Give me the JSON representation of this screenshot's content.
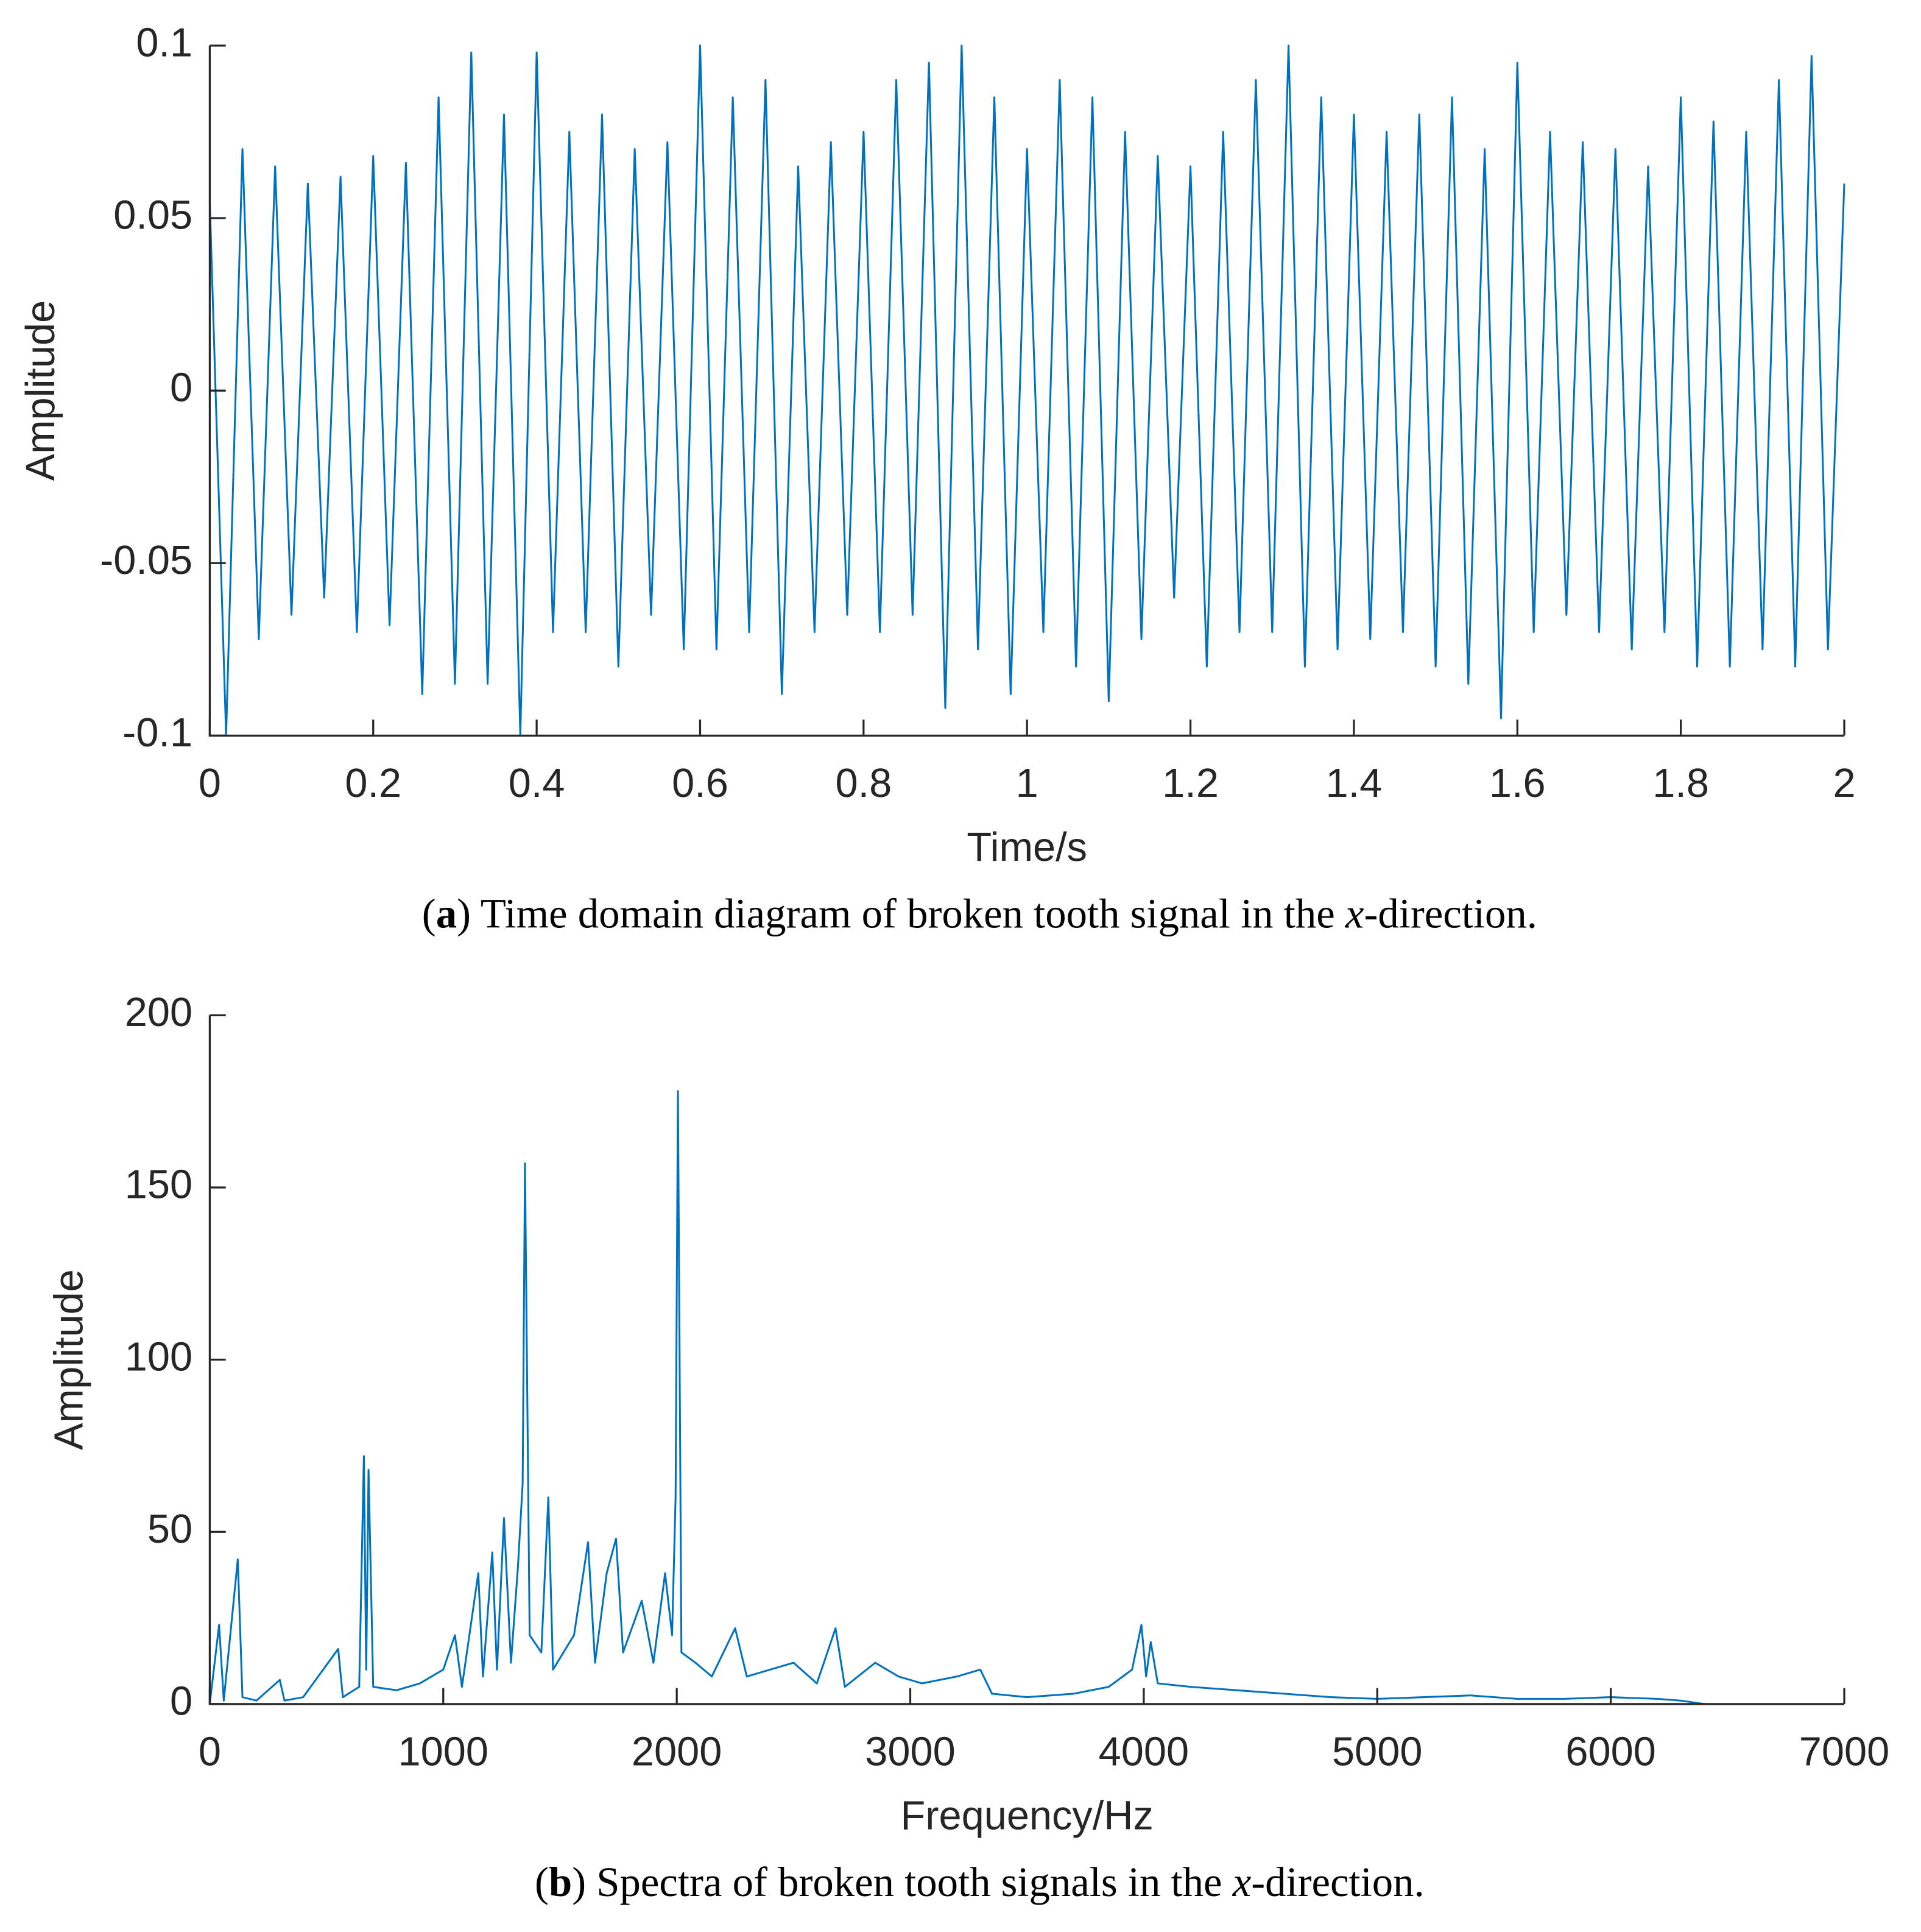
{
  "chart_data": [
    {
      "type": "line",
      "color": "#0072bd",
      "xlabel": "Time/s",
      "ylabel": "Amplitude",
      "caption_parts": [
        "(",
        "a",
        ") Time domain diagram of broken tooth signal in the ",
        "x",
        "-direction."
      ],
      "xlim": [
        0,
        2
      ],
      "ylim": [
        -0.1,
        0.1
      ],
      "xticks": [
        0,
        0.2,
        0.4,
        0.6,
        0.8,
        1,
        1.2,
        1.4,
        1.6,
        1.8,
        2
      ],
      "yticks": [
        -0.1,
        -0.05,
        0,
        0.05,
        0.1
      ],
      "x": [
        0,
        0.02,
        0.04,
        0.06,
        0.08,
        0.1,
        0.12,
        0.14,
        0.16,
        0.18,
        0.2,
        0.22,
        0.24,
        0.26,
        0.28,
        0.3,
        0.32,
        0.34,
        0.36,
        0.38,
        0.4,
        0.42,
        0.44,
        0.46,
        0.48,
        0.5,
        0.52,
        0.54,
        0.56,
        0.58,
        0.6,
        0.62,
        0.64,
        0.66,
        0.68,
        0.7,
        0.72,
        0.74,
        0.76,
        0.78,
        0.8,
        0.82,
        0.84,
        0.86,
        0.88,
        0.9,
        0.92,
        0.94,
        0.96,
        0.98,
        1,
        1.02,
        1.04,
        1.06,
        1.08,
        1.1,
        1.12,
        1.14,
        1.16,
        1.18,
        1.2,
        1.22,
        1.24,
        1.26,
        1.28,
        1.3,
        1.32,
        1.34,
        1.36,
        1.38,
        1.4,
        1.42,
        1.44,
        1.46,
        1.48,
        1.5,
        1.52,
        1.54,
        1.56,
        1.58,
        1.6,
        1.62,
        1.64,
        1.66,
        1.68,
        1.7,
        1.72,
        1.74,
        1.76,
        1.78,
        1.8,
        1.82,
        1.84,
        1.86,
        1.88,
        1.9,
        1.92,
        1.94,
        1.96,
        1.98,
        2
      ],
      "values": [
        0.055,
        -0.1,
        0.07,
        -0.072,
        0.065,
        -0.065,
        0.06,
        -0.06,
        0.062,
        -0.07,
        0.068,
        -0.068,
        0.066,
        -0.088,
        0.085,
        -0.085,
        0.098,
        -0.085,
        0.08,
        -0.1,
        0.098,
        -0.07,
        0.075,
        -0.07,
        0.08,
        -0.08,
        0.07,
        -0.065,
        0.072,
        -0.075,
        0.1,
        -0.075,
        0.085,
        -0.07,
        0.09,
        -0.088,
        0.065,
        -0.07,
        0.072,
        -0.065,
        0.075,
        -0.07,
        0.09,
        -0.065,
        0.095,
        -0.092,
        0.1,
        -0.075,
        0.085,
        -0.088,
        0.07,
        -0.07,
        0.09,
        -0.08,
        0.085,
        -0.09,
        0.075,
        -0.072,
        0.068,
        -0.06,
        0.065,
        -0.08,
        0.075,
        -0.07,
        0.09,
        -0.07,
        0.1,
        -0.08,
        0.085,
        -0.075,
        0.08,
        -0.072,
        0.075,
        -0.07,
        0.08,
        -0.08,
        0.085,
        -0.085,
        0.07,
        -0.095,
        0.095,
        -0.07,
        0.075,
        -0.065,
        0.072,
        -0.07,
        0.07,
        -0.075,
        0.065,
        -0.07,
        0.085,
        -0.08,
        0.078,
        -0.08,
        0.075,
        -0.075,
        0.09,
        -0.08,
        0.097,
        -0.075,
        0.06
      ]
    },
    {
      "type": "line",
      "color": "#0072bd",
      "xlabel": "Frequency/Hz",
      "ylabel": "Amplitude",
      "caption_parts": [
        "(",
        "b",
        ") Spectra of broken tooth signals in the ",
        "x",
        "-direction."
      ],
      "xlim": [
        0,
        7000
      ],
      "ylim": [
        0,
        200
      ],
      "xticks": [
        0,
        1000,
        2000,
        3000,
        4000,
        5000,
        6000,
        7000
      ],
      "yticks": [
        0,
        50,
        100,
        150,
        200
      ],
      "x": [
        0,
        40,
        60,
        120,
        140,
        200,
        300,
        320,
        400,
        550,
        570,
        640,
        660,
        670,
        680,
        700,
        800,
        900,
        1000,
        1050,
        1080,
        1150,
        1170,
        1210,
        1230,
        1260,
        1290,
        1320,
        1340,
        1350,
        1370,
        1420,
        1450,
        1470,
        1560,
        1620,
        1650,
        1700,
        1740,
        1770,
        1850,
        1900,
        1950,
        1980,
        1995,
        2005,
        2020,
        2080,
        2150,
        2250,
        2300,
        2400,
        2500,
        2600,
        2680,
        2720,
        2850,
        2950,
        3050,
        3200,
        3300,
        3350,
        3500,
        3700,
        3850,
        3950,
        3990,
        4010,
        4030,
        4060,
        4200,
        4400,
        4600,
        4800,
        5000,
        5200,
        5400,
        5600,
        5800,
        6000,
        6200,
        6300,
        6400
      ],
      "values": [
        0,
        23,
        1,
        42,
        2,
        1,
        7,
        1,
        2,
        16,
        2,
        5,
        72,
        10,
        68,
        5,
        4,
        6,
        10,
        20,
        5,
        38,
        8,
        44,
        10,
        54,
        12,
        40,
        64,
        157,
        20,
        15,
        60,
        10,
        20,
        47,
        12,
        38,
        48,
        15,
        30,
        12,
        38,
        20,
        60,
        178,
        15,
        12,
        8,
        22,
        8,
        10,
        12,
        6,
        22,
        5,
        12,
        8,
        6,
        8,
        10,
        3,
        2,
        3,
        5,
        10,
        23,
        8,
        18,
        6,
        5,
        4,
        3,
        2,
        1.5,
        2,
        2.5,
        1.5,
        1.5,
        2,
        1.5,
        1,
        0
      ]
    }
  ]
}
